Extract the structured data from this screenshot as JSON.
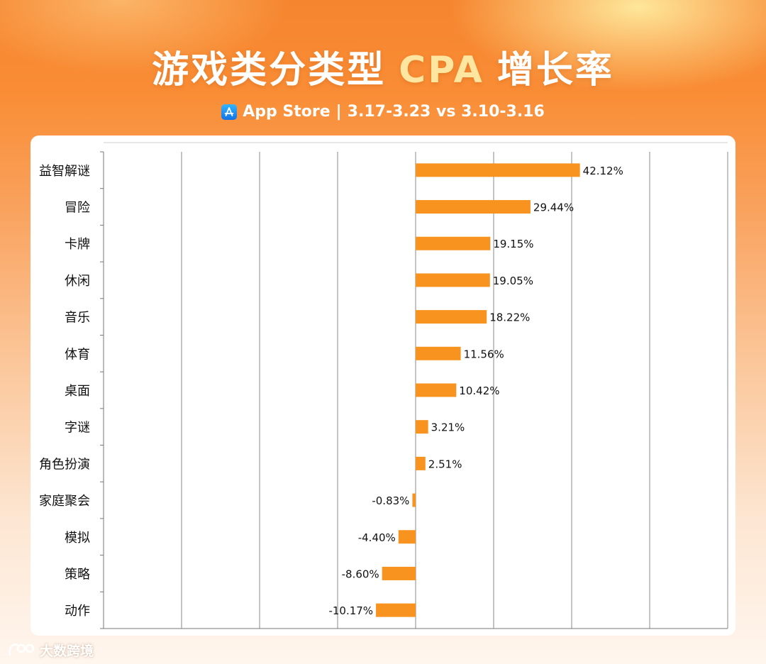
{
  "header": {
    "title_part1": "游戏类分类型",
    "title_cpa": "CPA",
    "title_part2": "增长率",
    "store_label": "App Store",
    "separator": "|",
    "period": "3.17-3.23 vs 3.10-3.16"
  },
  "watermark": {
    "brand": "大数跨境"
  },
  "colors": {
    "bar": "#f7931e",
    "grid": "#888888"
  },
  "chart_data": {
    "type": "bar",
    "orientation": "horizontal",
    "categories": [
      "益智解谜",
      "冒险",
      "卡牌",
      "休闲",
      "音乐",
      "体育",
      "桌面",
      "字谜",
      "角色扮演",
      "家庭聚会",
      "模拟",
      "策略",
      "动作"
    ],
    "values": [
      42.12,
      29.44,
      19.15,
      19.05,
      18.22,
      11.56,
      10.42,
      3.21,
      2.51,
      -0.83,
      -4.4,
      -8.6,
      -10.17
    ],
    "labels": [
      "42.12%",
      "29.44%",
      "19.15%",
      "19.05%",
      "18.22%",
      "11.56%",
      "10.42%",
      "3.21%",
      "2.51%",
      "-0.83%",
      "-4.40%",
      "-8.60%",
      "-10.17%"
    ],
    "unit": "%",
    "xlim": [
      -80,
      80
    ],
    "x_gridline_step": 20,
    "grid": true,
    "axis_tick_labels_shown": false,
    "legend": "none"
  }
}
